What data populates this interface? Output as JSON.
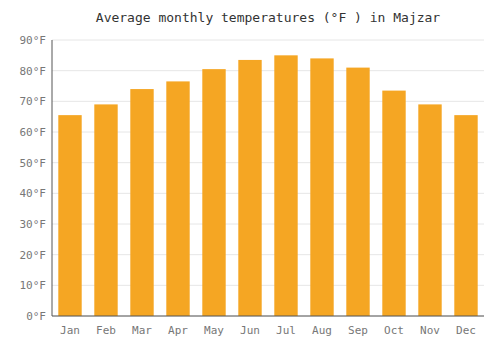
{
  "chart_data": {
    "type": "bar",
    "title": "Average monthly temperatures (°F ) in Majzar",
    "categories": [
      "Jan",
      "Feb",
      "Mar",
      "Apr",
      "May",
      "Jun",
      "Jul",
      "Aug",
      "Sep",
      "Oct",
      "Nov",
      "Dec"
    ],
    "values": [
      65.5,
      69.0,
      74.0,
      76.5,
      80.5,
      83.5,
      85.0,
      84.0,
      81.0,
      73.5,
      69.0,
      65.5
    ],
    "color": "#F5A623",
    "ylim": [
      0,
      90
    ],
    "yticks": [
      {
        "value": 0,
        "label": "0°F"
      },
      {
        "value": 10,
        "label": "10°F"
      },
      {
        "value": 20,
        "label": "20°F"
      },
      {
        "value": 30,
        "label": "30°F"
      },
      {
        "value": 40,
        "label": "40°F"
      },
      {
        "value": 50,
        "label": "50°F"
      },
      {
        "value": 60,
        "label": "60°F"
      },
      {
        "value": 70,
        "label": "70°F"
      },
      {
        "value": 80,
        "label": "80°F"
      },
      {
        "value": 90,
        "label": "90°F"
      }
    ],
    "grid": true
  }
}
